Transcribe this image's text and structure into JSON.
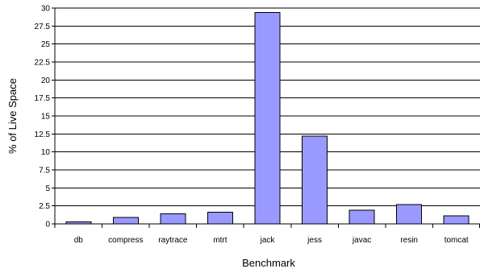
{
  "chart_data": {
    "type": "bar",
    "xlabel": "Benchmark",
    "ylabel": "% of Live Space",
    "categories": [
      "db",
      "compress",
      "raytrace",
      "mtrt",
      "jack",
      "jess",
      "javac",
      "resin",
      "tomcat"
    ],
    "values": [
      0.3,
      0.9,
      1.4,
      1.6,
      29.4,
      12.2,
      1.9,
      2.7,
      1.1
    ],
    "ylim": [
      0,
      30
    ],
    "yticks": [
      "0",
      "2.5",
      "5",
      "7.5",
      "10",
      "12.5",
      "15",
      "17.5",
      "20",
      "22.5",
      "25",
      "27.5",
      "30"
    ],
    "grid": true,
    "bar_color": "#9999ff",
    "bar_edge_color": "#000000"
  }
}
